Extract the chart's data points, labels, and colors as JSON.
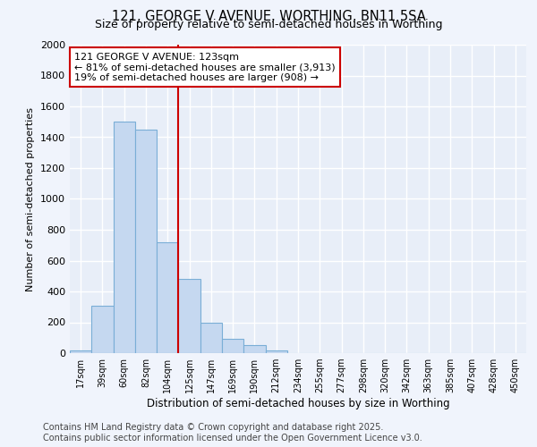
{
  "title_line1": "121, GEORGE V AVENUE, WORTHING, BN11 5SA",
  "title_line2": "Size of property relative to semi-detached houses in Worthing",
  "xlabel": "Distribution of semi-detached houses by size in Worthing",
  "ylabel": "Number of semi-detached properties",
  "bar_labels": [
    "17sqm",
    "39sqm",
    "60sqm",
    "82sqm",
    "104sqm",
    "125sqm",
    "147sqm",
    "169sqm",
    "190sqm",
    "212sqm",
    "234sqm",
    "255sqm",
    "277sqm",
    "298sqm",
    "320sqm",
    "342sqm",
    "363sqm",
    "385sqm",
    "407sqm",
    "428sqm",
    "450sqm"
  ],
  "bar_heights": [
    20,
    310,
    1500,
    1450,
    720,
    480,
    200,
    90,
    55,
    20,
    0,
    0,
    0,
    0,
    0,
    0,
    0,
    0,
    0,
    0,
    0
  ],
  "bar_color": "#c5d8f0",
  "bar_edge_color": "#7aaed6",
  "background_color": "#e8eef8",
  "grid_color": "#ffffff",
  "fig_background": "#f0f4fc",
  "ylim": [
    0,
    2000
  ],
  "yticks": [
    0,
    200,
    400,
    600,
    800,
    1000,
    1200,
    1400,
    1600,
    1800,
    2000
  ],
  "vline_x_index": 5.0,
  "vline_color": "#cc0000",
  "annotation_title": "121 GEORGE V AVENUE: 123sqm",
  "annotation_line1": "← 81% of semi-detached houses are smaller (3,913)",
  "annotation_line2": "19% of semi-detached houses are larger (908) →",
  "annotation_box_color": "#ffffff",
  "annotation_box_edge_color": "#cc0000",
  "footer_line1": "Contains HM Land Registry data © Crown copyright and database right 2025.",
  "footer_line2": "Contains public sector information licensed under the Open Government Licence v3.0.",
  "title_fontsize": 10.5,
  "subtitle_fontsize": 9,
  "annotation_fontsize": 8,
  "footer_fontsize": 7,
  "xlabel_fontsize": 8.5,
  "ylabel_fontsize": 8,
  "tick_fontsize": 8
}
